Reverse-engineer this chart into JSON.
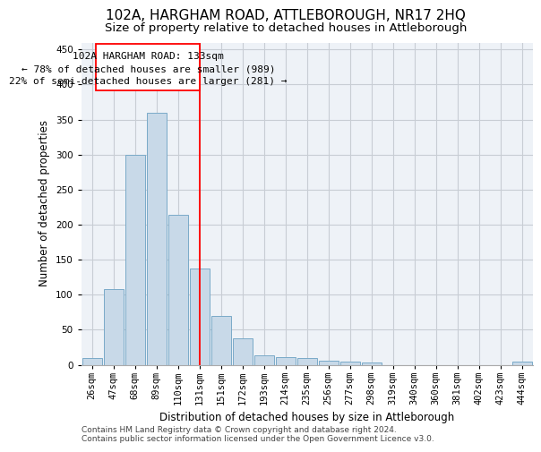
{
  "title": "102A, HARGHAM ROAD, ATTLEBOROUGH, NR17 2HQ",
  "subtitle": "Size of property relative to detached houses in Attleborough",
  "xlabel": "Distribution of detached houses by size in Attleborough",
  "ylabel": "Number of detached properties",
  "bar_labels": [
    "26sqm",
    "47sqm",
    "68sqm",
    "89sqm",
    "110sqm",
    "131sqm",
    "151sqm",
    "172sqm",
    "193sqm",
    "214sqm",
    "235sqm",
    "256sqm",
    "277sqm",
    "298sqm",
    "319sqm",
    "340sqm",
    "360sqm",
    "381sqm",
    "402sqm",
    "423sqm",
    "444sqm"
  ],
  "bar_values": [
    9,
    108,
    300,
    360,
    214,
    138,
    70,
    38,
    13,
    11,
    10,
    6,
    4,
    3,
    0,
    0,
    0,
    0,
    0,
    0,
    4
  ],
  "bar_color": "#c8d9e8",
  "bar_edge_color": "#7aaac8",
  "ylim": [
    0,
    460
  ],
  "yticks": [
    0,
    50,
    100,
    150,
    200,
    250,
    300,
    350,
    400,
    450
  ],
  "property_line_x": 5.0,
  "ann_line1": "102A HARGHAM ROAD: 133sqm",
  "ann_line2": "← 78% of detached houses are smaller (989)",
  "ann_line3": "22% of semi-detached houses are larger (281) →",
  "footer_text": "Contains HM Land Registry data © Crown copyright and database right 2024.\nContains public sector information licensed under the Open Government Licence v3.0.",
  "background_color": "#eef2f7",
  "grid_color": "#c8cdd4",
  "title_fontsize": 11,
  "subtitle_fontsize": 9.5,
  "axis_label_fontsize": 8.5,
  "tick_fontsize": 7.5,
  "annotation_fontsize": 8,
  "footer_fontsize": 6.5
}
